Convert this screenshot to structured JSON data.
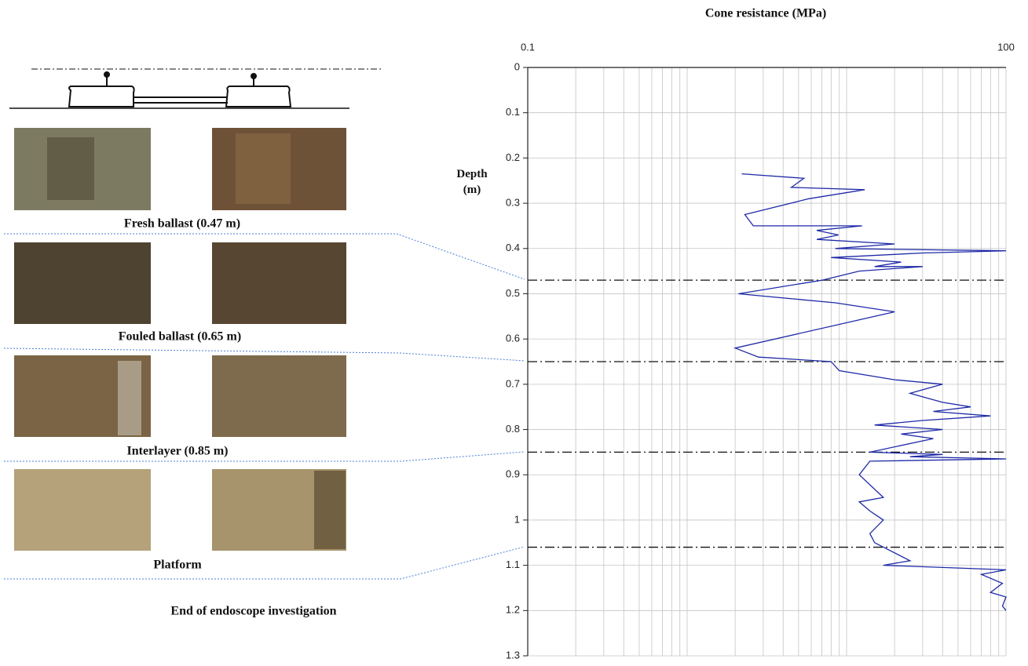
{
  "chart_data": {
    "type": "line",
    "title": "Cone resistance (MPa)",
    "y_label": "Depth (m)",
    "x_scale": "log",
    "xlim": [
      0.1,
      100
    ],
    "xticks": [
      0.1,
      100
    ],
    "x_minor_grid": [
      0.2,
      0.3,
      0.4,
      0.5,
      0.6,
      0.7,
      0.8,
      0.9,
      1,
      2,
      3,
      4,
      5,
      6,
      7,
      8,
      9,
      10,
      20,
      30,
      40,
      50,
      60,
      70,
      80,
      90
    ],
    "ylim": [
      0,
      1.3
    ],
    "y_inverted": true,
    "yticks": [
      0,
      0.1,
      0.2,
      0.3,
      0.4,
      0.5,
      0.6,
      0.7,
      0.8,
      0.9,
      1,
      1.1,
      1.2,
      1.3
    ],
    "grid": true,
    "series": [
      {
        "color": "#1f2aa8",
        "x": [
          2.2,
          5.4,
          4.5,
          13,
          5.8,
          2.3,
          2.6,
          12.5,
          6.5,
          8.9,
          6.5,
          20,
          8.5,
          100,
          30,
          8,
          22,
          15,
          30,
          12,
          7,
          2.1,
          8.5,
          20,
          2,
          2.8,
          8,
          9,
          20,
          40,
          25,
          40,
          60,
          35,
          80,
          30,
          15,
          40,
          22,
          35,
          14,
          40,
          25,
          100,
          14,
          12,
          17,
          12,
          14,
          17,
          14,
          15,
          25,
          17,
          100,
          70,
          95,
          80,
          100,
          95,
          100
        ],
        "values": [
          0.235,
          0.245,
          0.265,
          0.27,
          0.29,
          0.325,
          0.35,
          0.35,
          0.36,
          0.37,
          0.38,
          0.39,
          0.4,
          0.405,
          0.41,
          0.42,
          0.43,
          0.44,
          0.44,
          0.45,
          0.47,
          0.5,
          0.52,
          0.54,
          0.62,
          0.64,
          0.65,
          0.67,
          0.69,
          0.7,
          0.72,
          0.74,
          0.75,
          0.76,
          0.77,
          0.78,
          0.79,
          0.8,
          0.81,
          0.82,
          0.85,
          0.855,
          0.86,
          0.865,
          0.87,
          0.9,
          0.95,
          0.96,
          0.98,
          1,
          1.03,
          1.05,
          1.09,
          1.1,
          1.11,
          1.12,
          1.14,
          1.16,
          1.17,
          1.19,
          1.2
        ]
      }
    ],
    "layers": [
      {
        "label": "Fresh ballast (0.47 m)",
        "depth": 0.47
      },
      {
        "label": "Fouled ballast (0.65 m)",
        "depth": 0.65
      },
      {
        "label": "Interlayer (0.85 m)",
        "depth": 0.85
      },
      {
        "label": "Platform",
        "depth": 1.06
      }
    ],
    "annotation": "End of endoscope investigation"
  }
}
